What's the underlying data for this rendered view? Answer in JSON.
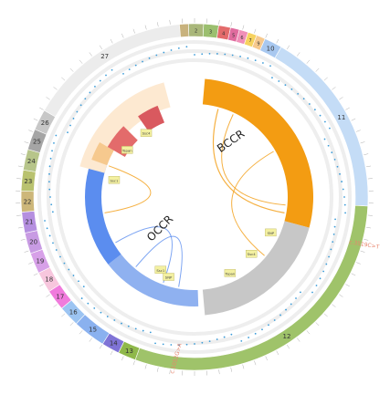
{
  "chromosomes": [
    {
      "label": "1",
      "color": "#c8b27d"
    },
    {
      "label": "2",
      "color": "#a9b77a"
    },
    {
      "label": "3",
      "color": "#9bbf6f"
    },
    {
      "label": "4",
      "color": "#e36b6b"
    },
    {
      "label": "5",
      "color": "#e06b9e"
    },
    {
      "label": "6",
      "color": "#f08fb8"
    },
    {
      "label": "7",
      "color": "#f6d25f"
    },
    {
      "label": "9",
      "color": "#f6c98e"
    },
    {
      "label": "10",
      "color": "#a8c8f0"
    },
    {
      "label": "11",
      "color": "#c4dcf6"
    },
    {
      "label": "12",
      "color": "#9fc36a"
    },
    {
      "label": "13",
      "color": "#8fb84a"
    },
    {
      "label": "14",
      "color": "#7f73d6"
    },
    {
      "label": "15",
      "color": "#8ab1ef"
    },
    {
      "label": "16",
      "color": "#9cc4f2"
    },
    {
      "label": "17",
      "color": "#f07bdc"
    },
    {
      "label": "18",
      "color": "#f7c6dd"
    },
    {
      "label": "19",
      "color": "#d7a0e8"
    },
    {
      "label": "20",
      "color": "#c89be3"
    },
    {
      "label": "21",
      "color": "#b58fe0"
    },
    {
      "label": "22",
      "color": "#cdb77a"
    },
    {
      "label": "23",
      "color": "#b9c26f"
    },
    {
      "label": "24",
      "color": "#b7c58a"
    },
    {
      "label": "25",
      "color": "#a5a5a5"
    },
    {
      "label": "26",
      "color": "#c7c7c7"
    },
    {
      "label": "27",
      "color": "#ececec"
    }
  ],
  "groups": [
    {
      "label": "BCCR",
      "color": "#f39c12"
    },
    {
      "label": "OCCR",
      "color": "#5b8def"
    }
  ],
  "small_labels": [
    "Ssc4",
    "Tspan",
    "Ssc1",
    "SNP"
  ],
  "highlight_labels": [
    {
      "text": "c.3519C>T",
      "color": "#e8856d"
    },
    {
      "text": "c.1052G>A",
      "color": "#e8856d"
    }
  ]
}
